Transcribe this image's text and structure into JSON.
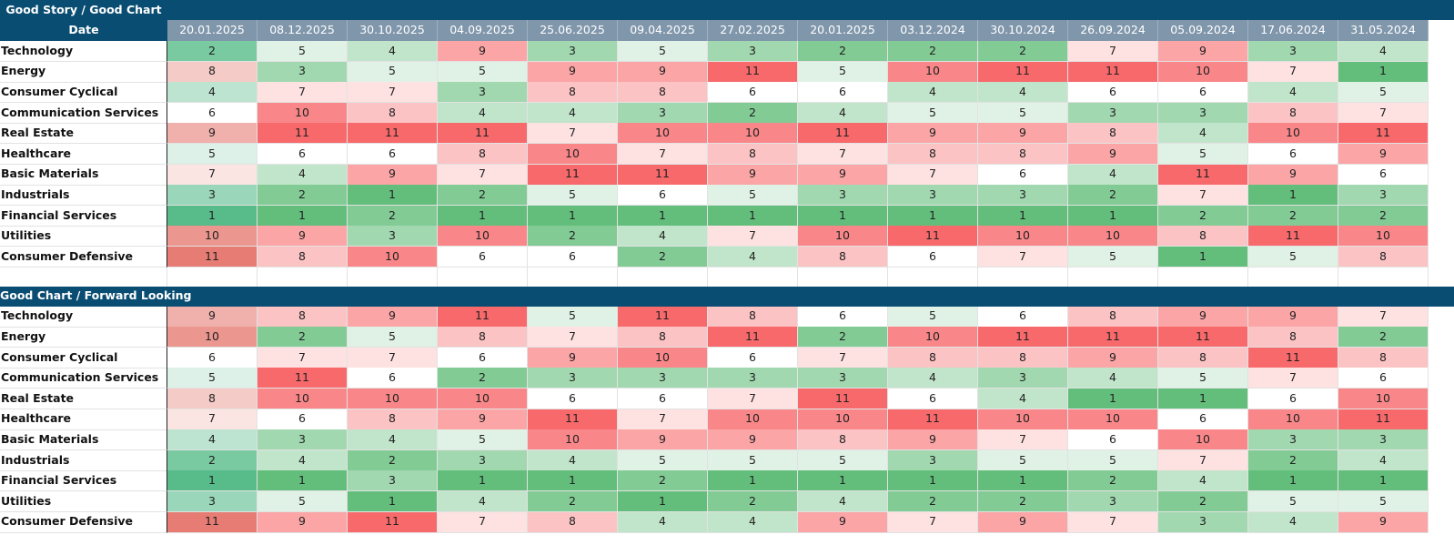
{
  "sections": [
    {
      "title": "Good Story / Good Chart",
      "date_label": "Date",
      "dates": [
        "20.01.2025",
        "08.12.2025",
        "30.10.2025",
        "04.09.2025",
        "25.06.2025",
        "09.04.2025",
        "27.02.2025",
        "20.01.2025",
        "03.12.2024",
        "30.10.2024",
        "26.09.2024",
        "05.09.2024",
        "17.06.2024",
        "31.05.2024"
      ],
      "rows": [
        {
          "label": "Technology",
          "values": [
            2,
            5,
            4,
            9,
            3,
            5,
            3,
            2,
            2,
            2,
            7,
            9,
            3,
            4
          ]
        },
        {
          "label": "Energy",
          "values": [
            8,
            3,
            5,
            5,
            9,
            9,
            11,
            5,
            10,
            11,
            11,
            10,
            7,
            1
          ]
        },
        {
          "label": "Consumer Cyclical",
          "values": [
            4,
            7,
            7,
            3,
            8,
            8,
            6,
            6,
            4,
            4,
            6,
            6,
            4,
            5
          ]
        },
        {
          "label": "Communication Services",
          "values": [
            6,
            10,
            8,
            4,
            4,
            3,
            2,
            4,
            5,
            5,
            3,
            3,
            8,
            7
          ]
        },
        {
          "label": "Real Estate",
          "values": [
            9,
            11,
            11,
            11,
            7,
            10,
            10,
            11,
            9,
            9,
            8,
            4,
            10,
            11
          ]
        },
        {
          "label": "Healthcare",
          "values": [
            5,
            6,
            6,
            8,
            10,
            7,
            8,
            7,
            8,
            8,
            9,
            5,
            6,
            9
          ]
        },
        {
          "label": "Basic Materials",
          "values": [
            7,
            4,
            9,
            7,
            11,
            11,
            9,
            9,
            7,
            6,
            4,
            11,
            9,
            6
          ]
        },
        {
          "label": "Industrials",
          "values": [
            3,
            2,
            1,
            2,
            5,
            6,
            5,
            3,
            3,
            3,
            2,
            7,
            1,
            3
          ]
        },
        {
          "label": "Financial Services",
          "values": [
            1,
            1,
            2,
            1,
            1,
            1,
            1,
            1,
            1,
            1,
            1,
            2,
            2,
            2
          ]
        },
        {
          "label": "Utilities",
          "values": [
            10,
            9,
            3,
            10,
            2,
            4,
            7,
            10,
            11,
            10,
            10,
            8,
            11,
            10
          ]
        },
        {
          "label": "Consumer Defensive",
          "values": [
            11,
            8,
            10,
            6,
            6,
            2,
            4,
            8,
            6,
            7,
            5,
            1,
            5,
            8
          ]
        }
      ]
    },
    {
      "title": "Good Chart / Forward Looking",
      "rows": [
        {
          "label": "Technology",
          "values": [
            9,
            8,
            9,
            11,
            5,
            11,
            8,
            6,
            5,
            6,
            8,
            9,
            9,
            7
          ]
        },
        {
          "label": "Energy",
          "values": [
            10,
            2,
            5,
            8,
            7,
            8,
            11,
            2,
            10,
            11,
            11,
            11,
            8,
            2
          ]
        },
        {
          "label": "Consumer Cyclical",
          "values": [
            6,
            7,
            7,
            6,
            9,
            10,
            6,
            7,
            8,
            8,
            9,
            8,
            11,
            8
          ]
        },
        {
          "label": "Communication Services",
          "values": [
            5,
            11,
            6,
            2,
            3,
            3,
            3,
            3,
            4,
            3,
            4,
            5,
            7,
            6
          ]
        },
        {
          "label": "Real Estate",
          "values": [
            8,
            10,
            10,
            10,
            6,
            6,
            7,
            11,
            6,
            4,
            1,
            1,
            6,
            10
          ]
        },
        {
          "label": "Healthcare",
          "values": [
            7,
            6,
            8,
            9,
            11,
            7,
            10,
            10,
            11,
            10,
            10,
            6,
            10,
            11
          ]
        },
        {
          "label": "Basic Materials",
          "values": [
            4,
            3,
            4,
            5,
            10,
            9,
            9,
            8,
            9,
            7,
            6,
            10,
            3,
            3
          ]
        },
        {
          "label": "Industrials",
          "values": [
            2,
            4,
            2,
            3,
            4,
            5,
            5,
            5,
            3,
            5,
            5,
            7,
            2,
            4
          ]
        },
        {
          "label": "Financial Services",
          "values": [
            1,
            1,
            3,
            1,
            1,
            2,
            1,
            1,
            1,
            1,
            2,
            4,
            1,
            1
          ]
        },
        {
          "label": "Utilities",
          "values": [
            3,
            5,
            1,
            4,
            2,
            1,
            2,
            4,
            2,
            2,
            3,
            2,
            5,
            5
          ]
        },
        {
          "label": "Consumer Defensive",
          "values": [
            11,
            9,
            11,
            7,
            8,
            4,
            4,
            9,
            7,
            9,
            7,
            3,
            4,
            9
          ]
        }
      ]
    }
  ]
}
